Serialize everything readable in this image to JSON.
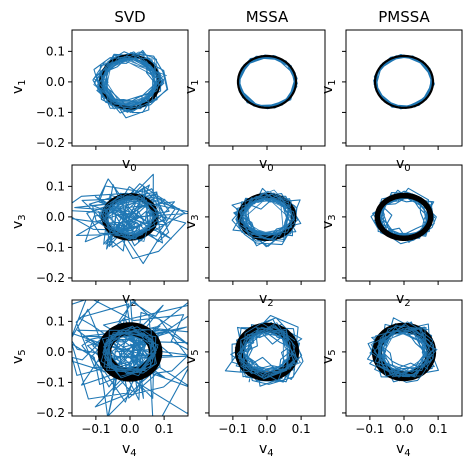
{
  "colors": {
    "noisy": "#1f77b4",
    "clean": "#000000",
    "axis": "#000000",
    "background": "#ffffff"
  },
  "column_titles": [
    "SVD",
    "MSSA",
    "PMSSA"
  ],
  "chart_data": {
    "type": "scatter",
    "layout": "3x3 grid of phase plots, shared x and y axes",
    "xlim": [
      -0.17,
      0.17
    ],
    "ylim": [
      -0.21,
      0.17
    ],
    "x_ticks": [
      -0.1,
      0.0,
      0.1
    ],
    "x_tick_labels": [
      "−0.1",
      "0.0",
      "0.1"
    ],
    "y_ticks": [
      -0.2,
      -0.1,
      0.0,
      0.1
    ],
    "y_tick_labels": [
      "−0.2",
      "−0.1",
      "0.0",
      "0.1"
    ],
    "grid": false,
    "legend": "none",
    "rows": [
      {
        "ylabel": "v1",
        "ylabel_sub": "1",
        "xlabel": "v0",
        "xlabel_sub": "0",
        "panels": [
          {
            "title": "SVD",
            "noise": 0.012,
            "x_radius": 0.085,
            "y_radius": 0.085,
            "thickness": 0.01
          },
          {
            "title": "MSSA",
            "noise": 0.002,
            "x_radius": 0.085,
            "y_radius": 0.085,
            "thickness": 0.006
          },
          {
            "title": "PMSSA",
            "noise": 0.002,
            "x_radius": 0.085,
            "y_radius": 0.085,
            "thickness": 0.006
          }
        ]
      },
      {
        "ylabel": "v3",
        "ylabel_sub": "3",
        "xlabel": "v2",
        "xlabel_sub": "2",
        "panels": [
          {
            "title": "SVD",
            "noise": 0.045,
            "x_radius": 0.075,
            "y_radius": 0.068,
            "thickness": 0.018
          },
          {
            "title": "MSSA",
            "noise": 0.012,
            "x_radius": 0.078,
            "y_radius": 0.07,
            "thickness": 0.016
          },
          {
            "title": "PMSSA",
            "noise": 0.01,
            "x_radius": 0.078,
            "y_radius": 0.07,
            "thickness": 0.016
          }
        ]
      },
      {
        "ylabel": "v5",
        "ylabel_sub": "5",
        "xlabel": "v4",
        "xlabel_sub": "4",
        "panels": [
          {
            "title": "SVD",
            "noise": 0.08,
            "x_radius": 0.075,
            "y_radius": 0.075,
            "thickness": 0.04
          },
          {
            "title": "MSSA",
            "noise": 0.018,
            "x_radius": 0.08,
            "y_radius": 0.08,
            "thickness": 0.028
          },
          {
            "title": "PMSSA",
            "noise": 0.016,
            "x_radius": 0.08,
            "y_radius": 0.08,
            "thickness": 0.028
          }
        ]
      }
    ]
  }
}
